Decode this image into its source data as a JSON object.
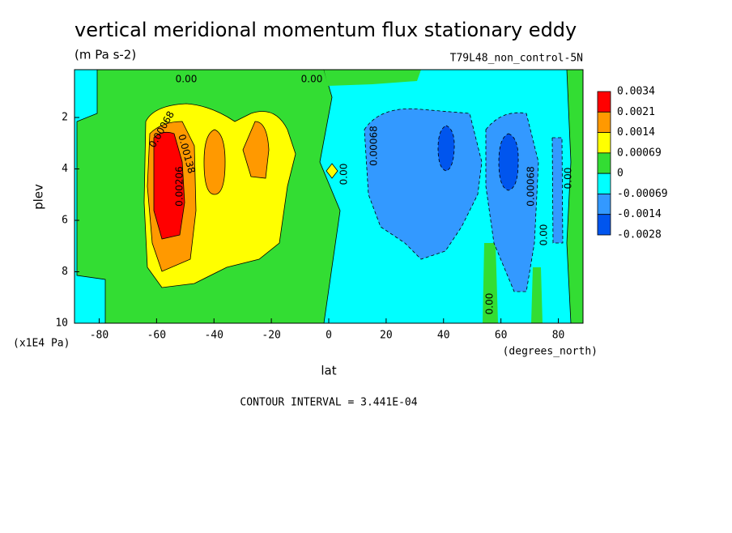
{
  "chart_data": {
    "type": "contour",
    "title": "vertical meridional momentum flux stationary eddy",
    "subtitle": "(m Pa s-2)",
    "dataset": "T79L48_non_control-5N",
    "x_label": "lat",
    "y_label": "plev",
    "x_units": "(degrees_north)",
    "y_units": "(x1E4 Pa)",
    "footer": "CONTOUR INTERVAL = 3.441E-04",
    "xlim": [
      -88.6,
      88.6
    ],
    "ylim": [
      10,
      0.14
    ],
    "xticks": [
      -80,
      -60,
      -40,
      -20,
      0,
      20,
      40,
      60,
      80
    ],
    "yticks": [
      2,
      4,
      6,
      8,
      10
    ],
    "levels": [
      0.0034,
      0.0021,
      0.0014,
      0.00069,
      0,
      -0.00069,
      -0.0014,
      -0.0028
    ],
    "colors": [
      "#ff0000",
      "#ff9900",
      "#ffff00",
      "#33dd33",
      "#00ffff",
      "#3399ff",
      "#0055ee"
    ],
    "annotations": [
      "0.00",
      "0.00",
      "0.00068",
      "0.00138",
      "0.00206",
      "0.00",
      "0.00068",
      "0.00068",
      "0.00",
      "0.00",
      "0.00"
    ]
  }
}
